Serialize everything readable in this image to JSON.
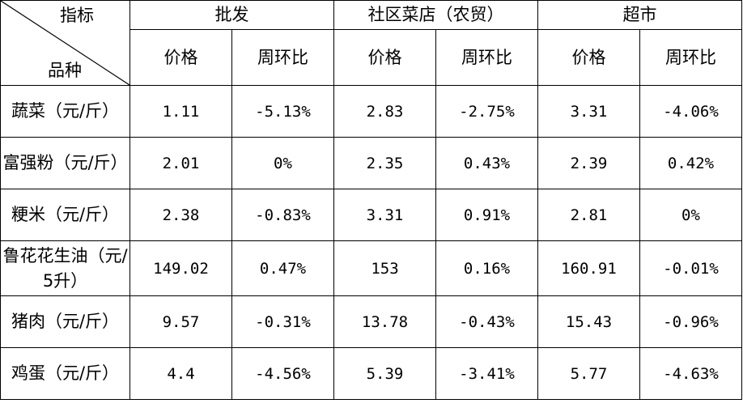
{
  "corner": {
    "top": "指标",
    "bottom": "品种"
  },
  "groups": [
    "批发",
    "社区菜店（农贸）",
    "超市"
  ],
  "subheaders": [
    "价格",
    "周环比",
    "价格",
    "周环比",
    "价格",
    "周环比"
  ],
  "rows": [
    {
      "label": "蔬菜（元/斤）",
      "values": [
        "1.11",
        "-5.13%",
        "2.83",
        "-2.75%",
        "3.31",
        "-4.06%"
      ]
    },
    {
      "label": "富强粉（元/斤）",
      "values": [
        "2.01",
        "0%",
        "2.35",
        "0.43%",
        "2.39",
        "0.42%"
      ]
    },
    {
      "label": "粳米（元/斤）",
      "values": [
        "2.38",
        "-0.83%",
        "3.31",
        "0.91%",
        "2.81",
        "0%"
      ]
    },
    {
      "label": "鲁花花生油（元/5升）",
      "values": [
        "149.02",
        "0.47%",
        "153",
        "0.16%",
        "160.91",
        "-0.01%"
      ]
    },
    {
      "label": "猪肉（元/斤）",
      "values": [
        "9.57",
        "-0.31%",
        "13.78",
        "-0.43%",
        "15.43",
        "-0.96%"
      ]
    },
    {
      "label": "鸡蛋（元/斤）",
      "values": [
        "4.4",
        "-4.56%",
        "5.39",
        "-3.41%",
        "5.77",
        "-4.63%"
      ]
    }
  ]
}
